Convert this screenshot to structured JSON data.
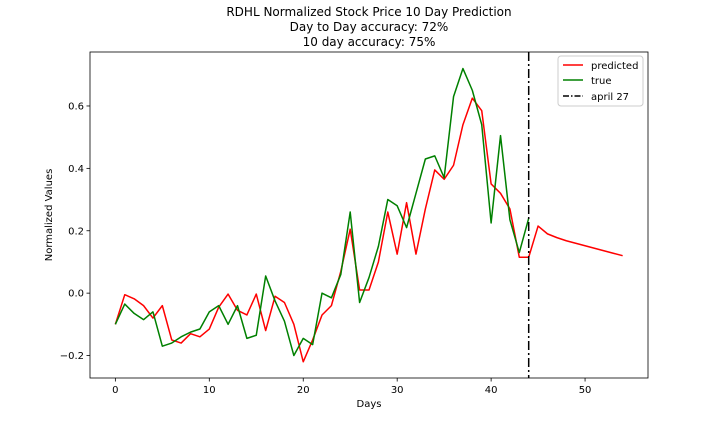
{
  "chart_data": {
    "type": "line",
    "title": [
      "RDHL Normalized Stock Price 10 Day Prediction",
      "Day to Day accuracy: 72%",
      "10 day accuracy: 75%"
    ],
    "xlabel": "Days",
    "ylabel": "Normalized Values",
    "xlim": [
      -2.7,
      56.7
    ],
    "ylim": [
      -0.272,
      0.773
    ],
    "xticks": [
      0,
      10,
      20,
      30,
      40,
      50
    ],
    "yticks": [
      -0.2,
      0.0,
      0.2,
      0.4,
      0.6
    ],
    "ytick_labels": [
      "−0.2",
      "0.0",
      "0.2",
      "0.4",
      "0.6"
    ],
    "grid": false,
    "legend_position": "top-right",
    "series": [
      {
        "name": "predicted",
        "color": "#ff0000",
        "x": [
          0,
          1,
          2,
          3,
          4,
          5,
          6,
          7,
          8,
          9,
          10,
          11,
          12,
          13,
          14,
          15,
          16,
          17,
          18,
          19,
          20,
          21,
          22,
          23,
          24,
          25,
          26,
          27,
          28,
          29,
          30,
          31,
          32,
          33,
          34,
          35,
          36,
          37,
          38,
          39,
          40,
          41,
          42,
          43,
          44,
          45,
          46,
          47,
          48,
          49,
          50,
          51,
          52,
          53,
          54
        ],
        "y": [
          -0.1,
          -0.005,
          -0.018,
          -0.04,
          -0.08,
          -0.04,
          -0.15,
          -0.16,
          -0.13,
          -0.14,
          -0.115,
          -0.045,
          -0.003,
          -0.055,
          -0.07,
          -0.003,
          -0.12,
          -0.01,
          -0.03,
          -0.1,
          -0.22,
          -0.15,
          -0.07,
          -0.04,
          0.07,
          0.205,
          0.01,
          0.01,
          0.1,
          0.26,
          0.125,
          0.29,
          0.125,
          0.27,
          0.395,
          0.365,
          0.41,
          0.54,
          0.625,
          0.585,
          0.35,
          0.32,
          0.27,
          0.115,
          0.115,
          0.215,
          0.19,
          0.178,
          0.168,
          0.16,
          0.152,
          0.144,
          0.136,
          0.128,
          0.12
        ]
      },
      {
        "name": "true",
        "color": "#008000",
        "x": [
          0,
          1,
          2,
          3,
          4,
          5,
          6,
          7,
          8,
          9,
          10,
          11,
          12,
          13,
          14,
          15,
          16,
          17,
          18,
          19,
          20,
          21,
          22,
          23,
          24,
          25,
          26,
          27,
          28,
          29,
          30,
          31,
          32,
          33,
          34,
          35,
          36,
          37,
          38,
          39,
          40,
          41,
          42,
          43,
          44
        ],
        "y": [
          -0.1,
          -0.035,
          -0.065,
          -0.085,
          -0.06,
          -0.17,
          -0.16,
          -0.14,
          -0.125,
          -0.115,
          -0.06,
          -0.04,
          -0.1,
          -0.04,
          -0.145,
          -0.135,
          0.055,
          -0.025,
          -0.09,
          -0.2,
          -0.145,
          -0.165,
          0.0,
          -0.015,
          0.06,
          0.26,
          -0.03,
          0.05,
          0.15,
          0.3,
          0.28,
          0.21,
          0.32,
          0.43,
          0.44,
          0.37,
          0.63,
          0.72,
          0.65,
          0.54,
          0.225,
          0.505,
          0.235,
          0.13,
          0.24
        ]
      }
    ],
    "vline": {
      "name": "april 27",
      "x": 44,
      "color": "#000000",
      "style": "dash-dot"
    }
  }
}
